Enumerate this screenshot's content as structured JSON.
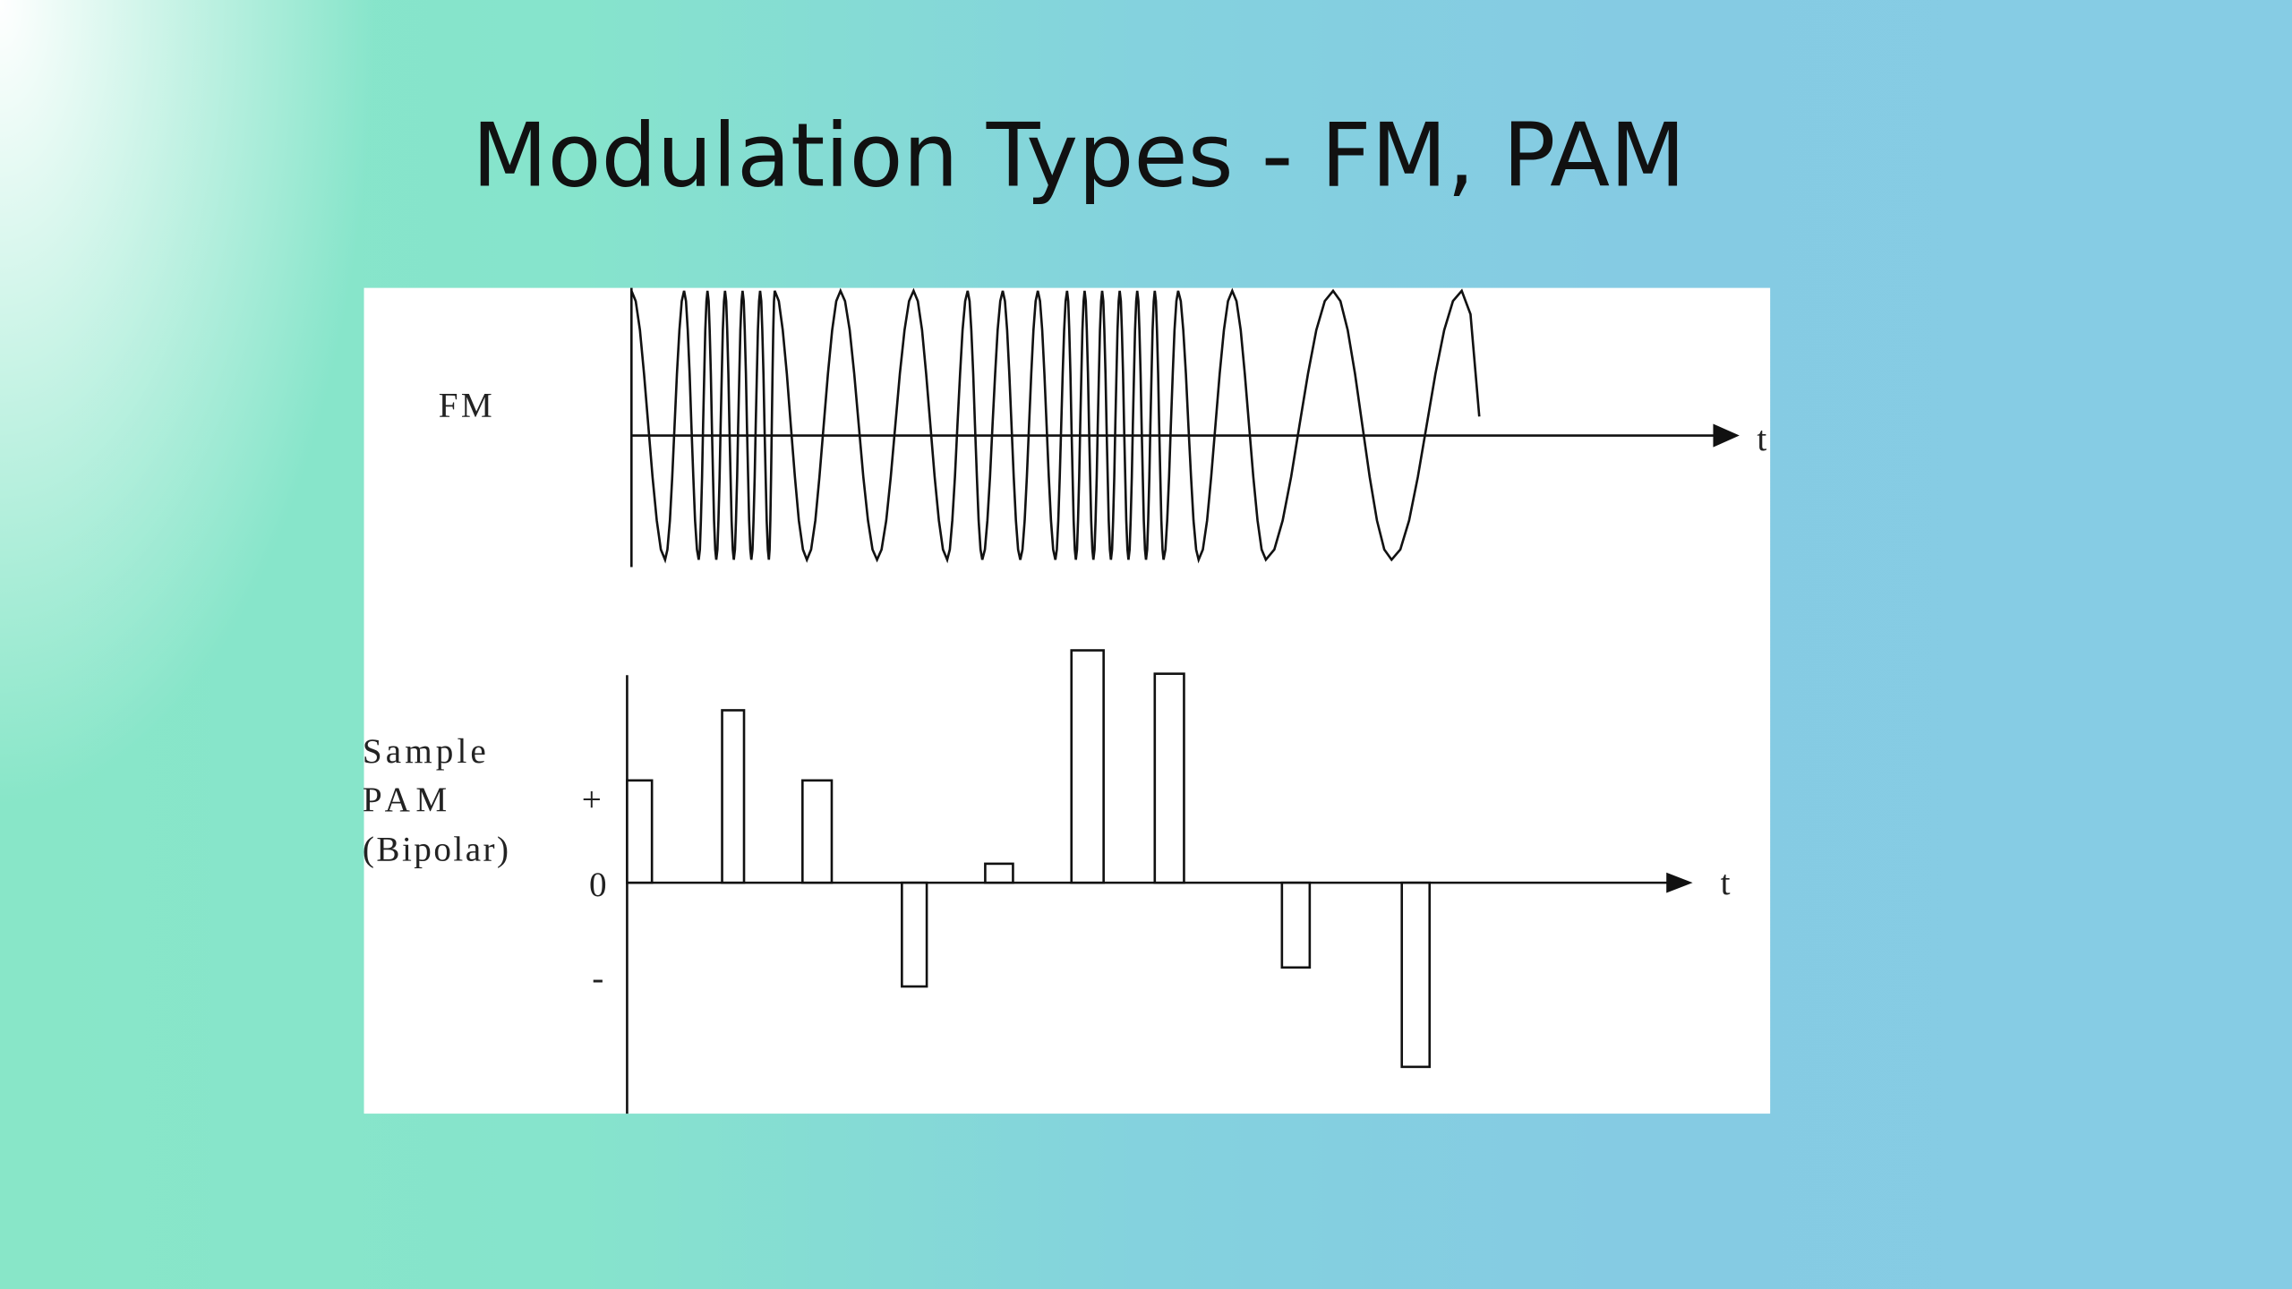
{
  "title": "Modulation Types - FM, PAM",
  "fm": {
    "label": "FM",
    "axis_label": "t"
  },
  "pam": {
    "label_lines": [
      "Sample",
      "PAM",
      "(Bipolar)"
    ],
    "plus": "+",
    "zero": "0",
    "minus": "-",
    "axis_label": "t"
  }
}
